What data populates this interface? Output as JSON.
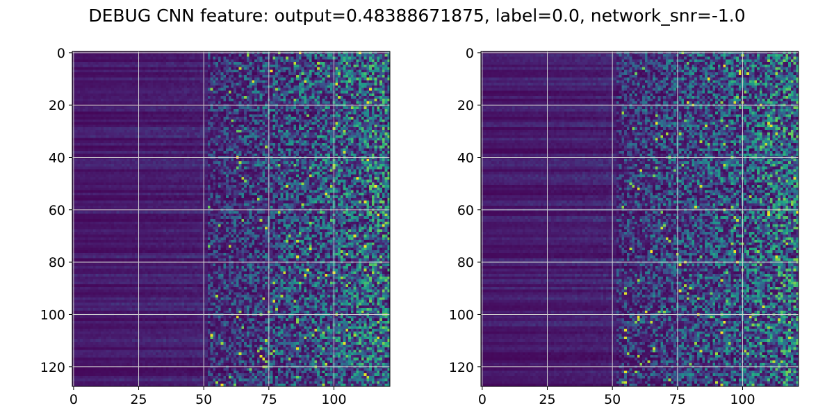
{
  "figure": {
    "title": "DEBUG CNN feature: output=0.48388671875, label=0.0, network_snr=-1.0"
  },
  "chart_data": [
    {
      "type": "heatmap",
      "colormap": "viridis",
      "grid": true,
      "grid_color": "#d0d0d0",
      "x_range": [
        -0.5,
        121.5
      ],
      "y_range": [
        -0.5,
        127.5
      ],
      "y_inverted": true,
      "x_ticks": [
        0,
        25,
        50,
        75,
        100
      ],
      "x_tick_labels": [
        "0",
        "25",
        "50",
        "75",
        "100"
      ],
      "y_ticks": [
        0,
        20,
        40,
        60,
        80,
        100,
        120
      ],
      "y_tick_labels": [
        "0",
        "20",
        "40",
        "60",
        "80",
        "100",
        "120"
      ],
      "shape": [
        128,
        122
      ],
      "texture_note": "low-intensity horizontal banding on left, noisy speckle increasing to the right",
      "seed": 11
    },
    {
      "type": "heatmap",
      "colormap": "viridis",
      "grid": true,
      "grid_color": "#d0d0d0",
      "x_range": [
        -0.5,
        121.5
      ],
      "y_range": [
        -0.5,
        127.5
      ],
      "y_inverted": true,
      "x_ticks": [
        0,
        25,
        50,
        75,
        100
      ],
      "x_tick_labels": [
        "0",
        "25",
        "50",
        "75",
        "100"
      ],
      "y_ticks": [
        0,
        20,
        40,
        60,
        80,
        100,
        120
      ],
      "y_tick_labels": [
        "0",
        "20",
        "40",
        "60",
        "80",
        "100",
        "120"
      ],
      "shape": [
        128,
        122
      ],
      "texture_note": "low-intensity horizontal banding on left, noisy speckle increasing to the right",
      "seed": 29
    }
  ]
}
